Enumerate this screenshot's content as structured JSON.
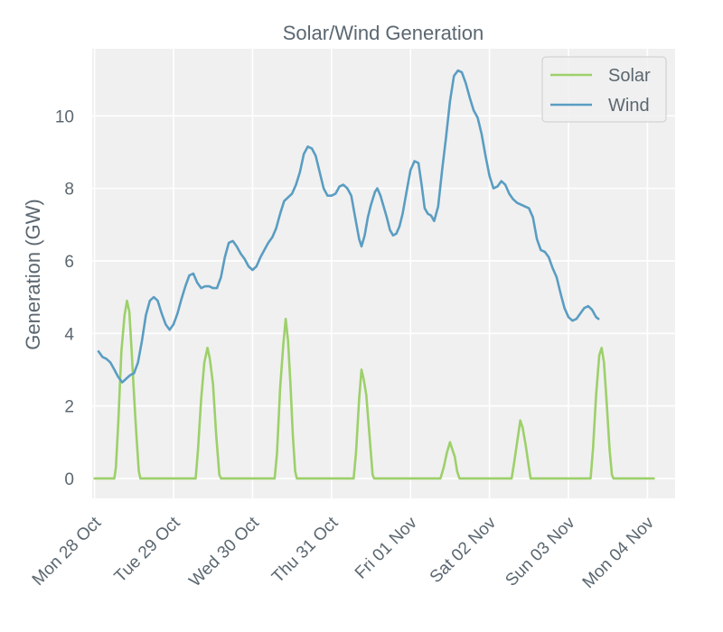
{
  "chart_data": {
    "type": "line",
    "title": "Solar/Wind Generation",
    "xlabel": "",
    "ylabel": "Generation (GW)",
    "x_ticks": [
      "Mon 28 Oct",
      "Tue 29 Oct",
      "Wed 30 Oct",
      "Thu 31 Oct",
      "Fri 01 Nov",
      "Sat 02 Nov",
      "Sun 03 Nov",
      "Mon 04 Nov"
    ],
    "y_ticks": [
      0,
      2,
      4,
      6,
      8,
      10
    ],
    "xlim": [
      -0.03,
      7.35
    ],
    "ylim": [
      -0.55,
      11.85
    ],
    "x_unit": "days since Mon 28 Oct 00:00",
    "grid": true,
    "legend_position": "top-right",
    "series": [
      {
        "name": "Solar",
        "color": "#9dd06a",
        "points": [
          [
            0,
            0
          ],
          [
            0.25,
            0
          ],
          [
            0.27,
            0.3
          ],
          [
            0.3,
            1.5
          ],
          [
            0.34,
            3.5
          ],
          [
            0.38,
            4.5
          ],
          [
            0.41,
            4.9
          ],
          [
            0.44,
            4.6
          ],
          [
            0.47,
            3.5
          ],
          [
            0.5,
            2.3
          ],
          [
            0.53,
            1.2
          ],
          [
            0.56,
            0.2
          ],
          [
            0.58,
            0
          ],
          [
            1.0,
            0
          ],
          [
            1.28,
            0
          ],
          [
            1.31,
            0.8
          ],
          [
            1.35,
            2.2
          ],
          [
            1.39,
            3.2
          ],
          [
            1.43,
            3.6
          ],
          [
            1.46,
            3.3
          ],
          [
            1.5,
            2.6
          ],
          [
            1.54,
            1.2
          ],
          [
            1.58,
            0.1
          ],
          [
            1.6,
            0
          ],
          [
            2.0,
            0
          ],
          [
            2.28,
            0
          ],
          [
            2.31,
            0.7
          ],
          [
            2.35,
            2.5
          ],
          [
            2.39,
            3.7
          ],
          [
            2.42,
            4.4
          ],
          [
            2.45,
            3.8
          ],
          [
            2.48,
            2.6
          ],
          [
            2.51,
            1.2
          ],
          [
            2.54,
            0.2
          ],
          [
            2.56,
            0
          ],
          [
            3.0,
            0
          ],
          [
            3.28,
            0
          ],
          [
            3.31,
            0.7
          ],
          [
            3.35,
            2.2
          ],
          [
            3.38,
            3.0
          ],
          [
            3.41,
            2.7
          ],
          [
            3.44,
            2.3
          ],
          [
            3.48,
            1.2
          ],
          [
            3.52,
            0.1
          ],
          [
            3.54,
            0
          ],
          [
            4.0,
            0
          ],
          [
            4.38,
            0
          ],
          [
            4.42,
            0.3
          ],
          [
            4.46,
            0.7
          ],
          [
            4.5,
            1.0
          ],
          [
            4.53,
            0.8
          ],
          [
            4.56,
            0.6
          ],
          [
            4.59,
            0.2
          ],
          [
            4.62,
            0
          ],
          [
            5.0,
            0
          ],
          [
            5.28,
            0
          ],
          [
            5.31,
            0.4
          ],
          [
            5.35,
            1.0
          ],
          [
            5.39,
            1.6
          ],
          [
            5.42,
            1.4
          ],
          [
            5.46,
            0.9
          ],
          [
            5.5,
            0.3
          ],
          [
            5.52,
            0
          ],
          [
            6.0,
            0
          ],
          [
            6.28,
            0
          ],
          [
            6.31,
            0.8
          ],
          [
            6.35,
            2.3
          ],
          [
            6.39,
            3.4
          ],
          [
            6.42,
            3.6
          ],
          [
            6.45,
            3.2
          ],
          [
            6.48,
            2.2
          ],
          [
            6.52,
            0.8
          ],
          [
            6.55,
            0.1
          ],
          [
            6.57,
            0
          ],
          [
            7.0,
            0
          ],
          [
            7.08,
            0
          ]
        ]
      },
      {
        "name": "Wind",
        "color": "#5a9dc2",
        "points": [
          [
            0.05,
            3.5
          ],
          [
            0.1,
            3.35
          ],
          [
            0.15,
            3.3
          ],
          [
            0.2,
            3.2
          ],
          [
            0.25,
            3.0
          ],
          [
            0.3,
            2.8
          ],
          [
            0.35,
            2.65
          ],
          [
            0.4,
            2.75
          ],
          [
            0.45,
            2.85
          ],
          [
            0.5,
            2.9
          ],
          [
            0.55,
            3.2
          ],
          [
            0.6,
            3.8
          ],
          [
            0.65,
            4.5
          ],
          [
            0.7,
            4.9
          ],
          [
            0.75,
            5.0
          ],
          [
            0.8,
            4.9
          ],
          [
            0.85,
            4.55
          ],
          [
            0.9,
            4.25
          ],
          [
            0.95,
            4.1
          ],
          [
            1.0,
            4.25
          ],
          [
            1.05,
            4.55
          ],
          [
            1.1,
            4.95
          ],
          [
            1.15,
            5.3
          ],
          [
            1.2,
            5.6
          ],
          [
            1.25,
            5.65
          ],
          [
            1.3,
            5.4
          ],
          [
            1.35,
            5.25
          ],
          [
            1.4,
            5.3
          ],
          [
            1.45,
            5.3
          ],
          [
            1.5,
            5.25
          ],
          [
            1.55,
            5.25
          ],
          [
            1.6,
            5.55
          ],
          [
            1.65,
            6.1
          ],
          [
            1.7,
            6.5
          ],
          [
            1.75,
            6.55
          ],
          [
            1.8,
            6.4
          ],
          [
            1.85,
            6.2
          ],
          [
            1.9,
            6.05
          ],
          [
            1.95,
            5.85
          ],
          [
            2.0,
            5.75
          ],
          [
            2.05,
            5.85
          ],
          [
            2.1,
            6.1
          ],
          [
            2.15,
            6.3
          ],
          [
            2.2,
            6.5
          ],
          [
            2.25,
            6.65
          ],
          [
            2.3,
            6.9
          ],
          [
            2.35,
            7.3
          ],
          [
            2.4,
            7.65
          ],
          [
            2.45,
            7.75
          ],
          [
            2.5,
            7.85
          ],
          [
            2.55,
            8.1
          ],
          [
            2.6,
            8.45
          ],
          [
            2.65,
            8.95
          ],
          [
            2.7,
            9.15
          ],
          [
            2.75,
            9.1
          ],
          [
            2.8,
            8.9
          ],
          [
            2.85,
            8.45
          ],
          [
            2.9,
            8.0
          ],
          [
            2.95,
            7.8
          ],
          [
            3.0,
            7.8
          ],
          [
            3.05,
            7.85
          ],
          [
            3.1,
            8.05
          ],
          [
            3.15,
            8.1
          ],
          [
            3.2,
            8.0
          ],
          [
            3.25,
            7.8
          ],
          [
            3.3,
            7.2
          ],
          [
            3.35,
            6.6
          ],
          [
            3.38,
            6.4
          ],
          [
            3.42,
            6.7
          ],
          [
            3.46,
            7.2
          ],
          [
            3.5,
            7.55
          ],
          [
            3.55,
            7.9
          ],
          [
            3.58,
            8.0
          ],
          [
            3.62,
            7.8
          ],
          [
            3.66,
            7.5
          ],
          [
            3.7,
            7.2
          ],
          [
            3.74,
            6.85
          ],
          [
            3.78,
            6.7
          ],
          [
            3.82,
            6.75
          ],
          [
            3.86,
            6.95
          ],
          [
            3.9,
            7.3
          ],
          [
            3.95,
            7.9
          ],
          [
            4.0,
            8.5
          ],
          [
            4.05,
            8.75
          ],
          [
            4.1,
            8.7
          ],
          [
            4.14,
            8.1
          ],
          [
            4.18,
            7.45
          ],
          [
            4.22,
            7.3
          ],
          [
            4.26,
            7.25
          ],
          [
            4.3,
            7.1
          ],
          [
            4.35,
            7.5
          ],
          [
            4.4,
            8.5
          ],
          [
            4.45,
            9.4
          ],
          [
            4.5,
            10.4
          ],
          [
            4.55,
            11.1
          ],
          [
            4.6,
            11.25
          ],
          [
            4.65,
            11.2
          ],
          [
            4.7,
            10.9
          ],
          [
            4.75,
            10.5
          ],
          [
            4.8,
            10.15
          ],
          [
            4.85,
            9.95
          ],
          [
            4.9,
            9.5
          ],
          [
            4.95,
            8.9
          ],
          [
            5.0,
            8.35
          ],
          [
            5.05,
            8.0
          ],
          [
            5.1,
            8.05
          ],
          [
            5.15,
            8.2
          ],
          [
            5.2,
            8.1
          ],
          [
            5.25,
            7.85
          ],
          [
            5.3,
            7.7
          ],
          [
            5.35,
            7.6
          ],
          [
            5.4,
            7.55
          ],
          [
            5.45,
            7.5
          ],
          [
            5.5,
            7.45
          ],
          [
            5.55,
            7.2
          ],
          [
            5.6,
            6.6
          ],
          [
            5.65,
            6.3
          ],
          [
            5.7,
            6.25
          ],
          [
            5.75,
            6.1
          ],
          [
            5.8,
            5.8
          ],
          [
            5.85,
            5.55
          ],
          [
            5.9,
            5.1
          ],
          [
            5.95,
            4.7
          ],
          [
            6.0,
            4.45
          ],
          [
            6.05,
            4.35
          ],
          [
            6.1,
            4.4
          ],
          [
            6.15,
            4.55
          ],
          [
            6.2,
            4.7
          ],
          [
            6.25,
            4.75
          ],
          [
            6.3,
            4.65
          ],
          [
            6.35,
            4.45
          ],
          [
            6.38,
            4.4
          ]
        ]
      }
    ]
  }
}
